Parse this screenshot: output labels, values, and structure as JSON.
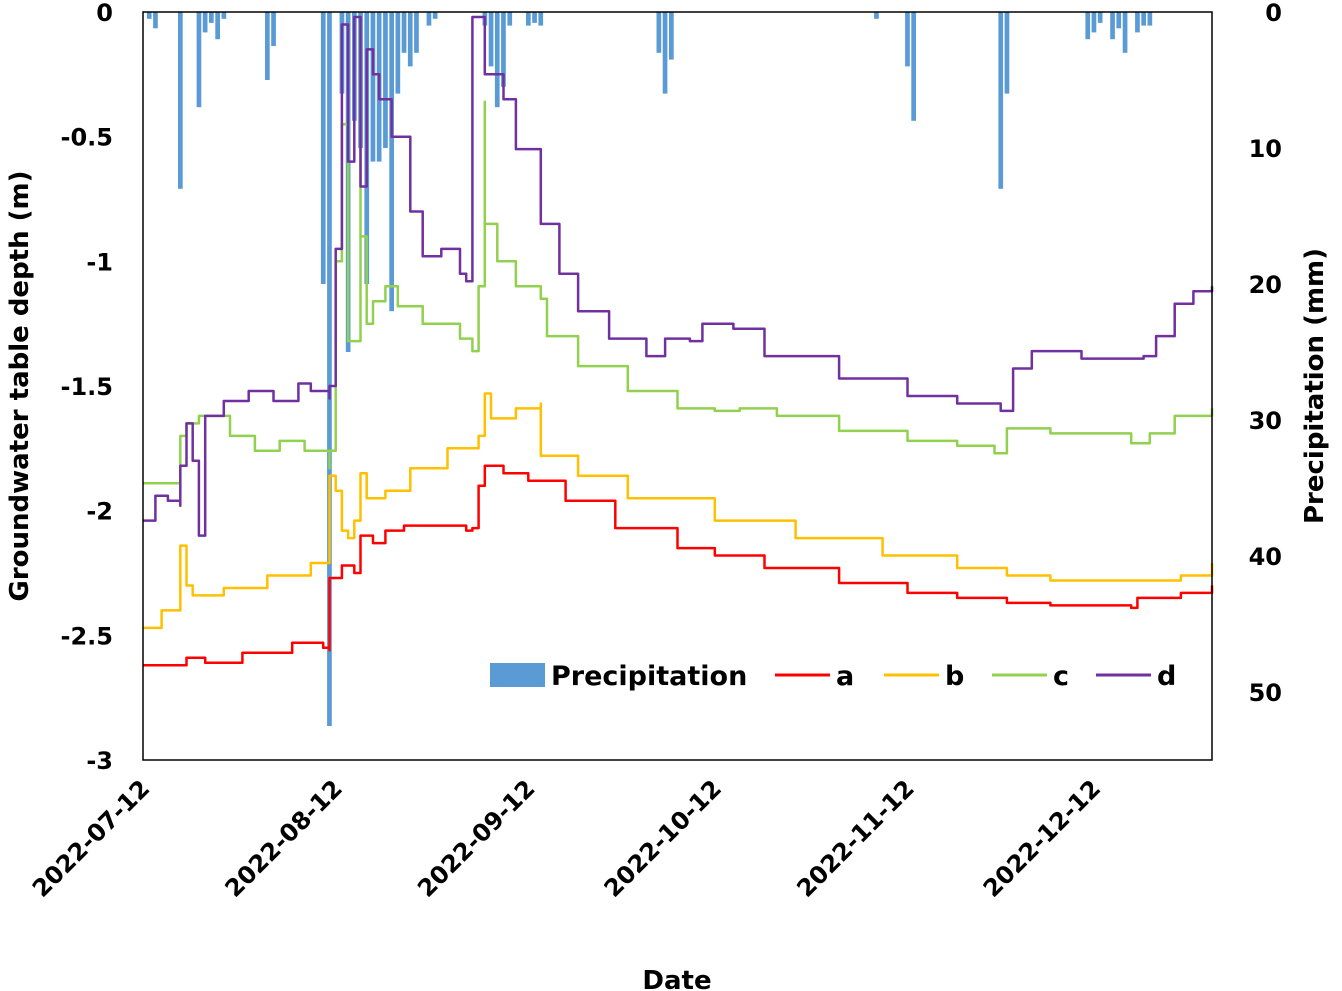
{
  "chart_data": {
    "type": "line",
    "xlabel": "Date",
    "ylabel_left": "Groundwater table depth (m)",
    "ylabel_right": "Precipitation (mm)",
    "x_range": [
      "2022-07-12",
      "2022-12-31"
    ],
    "x_ticks": [
      "2022-07-12",
      "2022-08-12",
      "2022-09-12",
      "2022-10-12",
      "2022-11-12",
      "2022-12-12"
    ],
    "ylim_left": [
      -3,
      0
    ],
    "yticks_left": [
      0,
      -0.5,
      -1,
      -1.5,
      -2,
      -2.5,
      -3
    ],
    "ytick_labels_left": [
      "0",
      "-0.5",
      "-1",
      "-1.5",
      "-2",
      "-2.5",
      "-3"
    ],
    "ylim_right": [
      0,
      55
    ],
    "y_inverted_right": true,
    "yticks_right": [
      0,
      10,
      20,
      30,
      40,
      50
    ],
    "ytick_labels_right": [
      "0",
      "10",
      "20",
      "30",
      "40",
      "50"
    ],
    "grid": false,
    "legend": {
      "position": "bottom-right",
      "entries": [
        {
          "label": "Precipitation",
          "kind": "bar",
          "color": "#5b9bd5"
        },
        {
          "label": "a",
          "kind": "line",
          "color": "#ff0000"
        },
        {
          "label": "b",
          "kind": "line",
          "color": "#ffc000"
        },
        {
          "label": "c",
          "kind": "line",
          "color": "#92d050"
        },
        {
          "label": "d",
          "kind": "line",
          "color": "#7030a0"
        }
      ]
    },
    "precipitation": {
      "name": "Precipitation",
      "color": "#5b9bd5",
      "points": [
        [
          "2022-07-13",
          0.5
        ],
        [
          "2022-07-14",
          1.2
        ],
        [
          "2022-07-18",
          13.0
        ],
        [
          "2022-07-21",
          7.0
        ],
        [
          "2022-07-22",
          1.5
        ],
        [
          "2022-07-23",
          0.8
        ],
        [
          "2022-07-24",
          2.0
        ],
        [
          "2022-07-25",
          0.5
        ],
        [
          "2022-08-01",
          5.0
        ],
        [
          "2022-08-02",
          2.5
        ],
        [
          "2022-08-10",
          20.0
        ],
        [
          "2022-08-11",
          52.5
        ],
        [
          "2022-08-13",
          6.0
        ],
        [
          "2022-08-14",
          25.0
        ],
        [
          "2022-08-15",
          8.0
        ],
        [
          "2022-08-16",
          10.0
        ],
        [
          "2022-08-17",
          20.0
        ],
        [
          "2022-08-18",
          11.0
        ],
        [
          "2022-08-19",
          11.0
        ],
        [
          "2022-08-20",
          10.0
        ],
        [
          "2022-08-21",
          22.0
        ],
        [
          "2022-08-22",
          6.0
        ],
        [
          "2022-08-23",
          3.0
        ],
        [
          "2022-08-24",
          4.0
        ],
        [
          "2022-08-25",
          3.0
        ],
        [
          "2022-08-27",
          1.0
        ],
        [
          "2022-08-28",
          0.5
        ],
        [
          "2022-09-05",
          1.0
        ],
        [
          "2022-09-06",
          4.0
        ],
        [
          "2022-09-07",
          7.0
        ],
        [
          "2022-09-08",
          5.5
        ],
        [
          "2022-09-09",
          1.0
        ],
        [
          "2022-09-12",
          1.0
        ],
        [
          "2022-09-13",
          0.8
        ],
        [
          "2022-09-14",
          1.0
        ],
        [
          "2022-10-03",
          3.0
        ],
        [
          "2022-10-04",
          6.0
        ],
        [
          "2022-10-05",
          3.5
        ],
        [
          "2022-11-07",
          0.5
        ],
        [
          "2022-11-12",
          4.0
        ],
        [
          "2022-11-13",
          8.0
        ],
        [
          "2022-11-27",
          13.0
        ],
        [
          "2022-11-28",
          6.0
        ],
        [
          "2022-12-11",
          2.0
        ],
        [
          "2022-12-12",
          1.5
        ],
        [
          "2022-12-13",
          0.8
        ],
        [
          "2022-12-15",
          2.0
        ],
        [
          "2022-12-16",
          1.2
        ],
        [
          "2022-12-17",
          3.0
        ],
        [
          "2022-12-19",
          1.5
        ],
        [
          "2022-12-20",
          1.0
        ],
        [
          "2022-12-21",
          1.0
        ]
      ]
    },
    "series": [
      {
        "name": "a",
        "color": "#ff0000",
        "points": [
          [
            "2022-07-12",
            -2.62
          ],
          [
            "2022-07-18",
            -2.62
          ],
          [
            "2022-07-19",
            -2.59
          ],
          [
            "2022-07-22",
            -2.61
          ],
          [
            "2022-07-28",
            -2.57
          ],
          [
            "2022-08-05",
            -2.53
          ],
          [
            "2022-08-10",
            -2.55
          ],
          [
            "2022-08-11",
            -2.56
          ],
          [
            "2022-08-11",
            -2.27
          ],
          [
            "2022-08-13",
            -2.22
          ],
          [
            "2022-08-15",
            -2.25
          ],
          [
            "2022-08-16",
            -2.1
          ],
          [
            "2022-08-18",
            -2.13
          ],
          [
            "2022-08-20",
            -2.08
          ],
          [
            "2022-08-23",
            -2.06
          ],
          [
            "2022-08-28",
            -2.06
          ],
          [
            "2022-09-02",
            -2.08
          ],
          [
            "2022-09-03",
            -2.07
          ],
          [
            "2022-09-04",
            -1.9
          ],
          [
            "2022-09-05",
            -1.82
          ],
          [
            "2022-09-08",
            -1.85
          ],
          [
            "2022-09-12",
            -1.88
          ],
          [
            "2022-09-18",
            -1.96
          ],
          [
            "2022-09-26",
            -2.07
          ],
          [
            "2022-10-06",
            -2.15
          ],
          [
            "2022-10-12",
            -2.18
          ],
          [
            "2022-10-20",
            -2.23
          ],
          [
            "2022-11-01",
            -2.29
          ],
          [
            "2022-11-12",
            -2.33
          ],
          [
            "2022-11-20",
            -2.35
          ],
          [
            "2022-11-28",
            -2.37
          ],
          [
            "2022-12-05",
            -2.38
          ],
          [
            "2022-12-18",
            -2.39
          ],
          [
            "2022-12-19",
            -2.35
          ],
          [
            "2022-12-26",
            -2.33
          ],
          [
            "2022-12-31",
            -2.3
          ]
        ]
      },
      {
        "name": "b",
        "color": "#ffc000",
        "points": [
          [
            "2022-07-12",
            -2.47
          ],
          [
            "2022-07-15",
            -2.4
          ],
          [
            "2022-07-18",
            -2.36
          ],
          [
            "2022-07-18",
            -2.14
          ],
          [
            "2022-07-19",
            -2.3
          ],
          [
            "2022-07-20",
            -2.34
          ],
          [
            "2022-07-25",
            -2.31
          ],
          [
            "2022-08-01",
            -2.26
          ],
          [
            "2022-08-08",
            -2.21
          ],
          [
            "2022-08-11",
            -2.2
          ],
          [
            "2022-08-11",
            -1.86
          ],
          [
            "2022-08-12",
            -1.92
          ],
          [
            "2022-08-13",
            -2.08
          ],
          [
            "2022-08-14",
            -2.11
          ],
          [
            "2022-08-15",
            -2.04
          ],
          [
            "2022-08-16",
            -1.85
          ],
          [
            "2022-08-17",
            -1.95
          ],
          [
            "2022-08-20",
            -1.92
          ],
          [
            "2022-08-24",
            -1.83
          ],
          [
            "2022-08-30",
            -1.75
          ],
          [
            "2022-09-04",
            -1.7
          ],
          [
            "2022-09-05",
            -1.53
          ],
          [
            "2022-09-06",
            -1.63
          ],
          [
            "2022-09-10",
            -1.59
          ],
          [
            "2022-09-14",
            -1.57
          ],
          [
            "2022-09-14",
            -1.78
          ],
          [
            "2022-09-20",
            -1.86
          ],
          [
            "2022-09-28",
            -1.95
          ],
          [
            "2022-10-12",
            -2.04
          ],
          [
            "2022-10-25",
            -2.11
          ],
          [
            "2022-11-08",
            -2.18
          ],
          [
            "2022-11-20",
            -2.23
          ],
          [
            "2022-11-28",
            -2.26
          ],
          [
            "2022-12-05",
            -2.28
          ],
          [
            "2022-12-20",
            -2.28
          ],
          [
            "2022-12-26",
            -2.26
          ],
          [
            "2022-12-31",
            -2.21
          ]
        ]
      },
      {
        "name": "c",
        "color": "#92d050",
        "points": [
          [
            "2022-07-12",
            -1.89
          ],
          [
            "2022-07-18",
            -1.91
          ],
          [
            "2022-07-18",
            -1.7
          ],
          [
            "2022-07-19",
            -1.65
          ],
          [
            "2022-07-21",
            -1.62
          ],
          [
            "2022-07-26",
            -1.7
          ],
          [
            "2022-07-30",
            -1.76
          ],
          [
            "2022-08-03",
            -1.72
          ],
          [
            "2022-08-07",
            -1.76
          ],
          [
            "2022-08-11",
            -1.83
          ],
          [
            "2022-08-11",
            -1.76
          ],
          [
            "2022-08-12",
            -1.0
          ],
          [
            "2022-08-13",
            -0.45
          ],
          [
            "2022-08-14",
            -1.32
          ],
          [
            "2022-08-16",
            -0.05
          ],
          [
            "2022-08-16",
            -0.9
          ],
          [
            "2022-08-17",
            -1.25
          ],
          [
            "2022-08-18",
            -1.16
          ],
          [
            "2022-08-20",
            -1.1
          ],
          [
            "2022-08-22",
            -1.18
          ],
          [
            "2022-08-26",
            -1.25
          ],
          [
            "2022-09-01",
            -1.31
          ],
          [
            "2022-09-03",
            -1.36
          ],
          [
            "2022-09-04",
            -1.1
          ],
          [
            "2022-09-05",
            -0.36
          ],
          [
            "2022-09-05",
            -0.85
          ],
          [
            "2022-09-07",
            -1.0
          ],
          [
            "2022-09-10",
            -1.1
          ],
          [
            "2022-09-14",
            -1.15
          ],
          [
            "2022-09-15",
            -1.3
          ],
          [
            "2022-09-20",
            -1.42
          ],
          [
            "2022-09-28",
            -1.52
          ],
          [
            "2022-10-06",
            -1.59
          ],
          [
            "2022-10-12",
            -1.6
          ],
          [
            "2022-10-16",
            -1.59
          ],
          [
            "2022-10-22",
            -1.62
          ],
          [
            "2022-11-01",
            -1.68
          ],
          [
            "2022-11-12",
            -1.72
          ],
          [
            "2022-11-20",
            -1.74
          ],
          [
            "2022-11-26",
            -1.77
          ],
          [
            "2022-11-27",
            -1.77
          ],
          [
            "2022-11-28",
            -1.67
          ],
          [
            "2022-12-05",
            -1.69
          ],
          [
            "2022-12-18",
            -1.73
          ],
          [
            "2022-12-21",
            -1.69
          ],
          [
            "2022-12-25",
            -1.62
          ],
          [
            "2022-12-31",
            -1.59
          ]
        ]
      },
      {
        "name": "d",
        "color": "#7030a0",
        "points": [
          [
            "2022-07-12",
            -2.04
          ],
          [
            "2022-07-14",
            -1.94
          ],
          [
            "2022-07-16",
            -1.96
          ],
          [
            "2022-07-18",
            -1.98
          ],
          [
            "2022-07-18",
            -1.82
          ],
          [
            "2022-07-19",
            -1.65
          ],
          [
            "2022-07-20",
            -1.8
          ],
          [
            "2022-07-21",
            -2.1
          ],
          [
            "2022-07-22",
            -1.62
          ],
          [
            "2022-07-25",
            -1.56
          ],
          [
            "2022-07-29",
            -1.52
          ],
          [
            "2022-08-02",
            -1.56
          ],
          [
            "2022-08-06",
            -1.49
          ],
          [
            "2022-08-08",
            -1.52
          ],
          [
            "2022-08-11",
            -1.55
          ],
          [
            "2022-08-11",
            -1.5
          ],
          [
            "2022-08-12",
            -0.95
          ],
          [
            "2022-08-13",
            -0.05
          ],
          [
            "2022-08-14",
            -0.6
          ],
          [
            "2022-08-15",
            -0.02
          ],
          [
            "2022-08-16",
            -0.7
          ],
          [
            "2022-08-17",
            -0.15
          ],
          [
            "2022-08-18",
            -0.25
          ],
          [
            "2022-08-19",
            -0.35
          ],
          [
            "2022-08-21",
            -0.5
          ],
          [
            "2022-08-24",
            -0.8
          ],
          [
            "2022-08-26",
            -0.98
          ],
          [
            "2022-08-29",
            -0.95
          ],
          [
            "2022-09-01",
            -1.05
          ],
          [
            "2022-09-02",
            -1.08
          ],
          [
            "2022-09-03",
            -0.02
          ],
          [
            "2022-09-05",
            -0.25
          ],
          [
            "2022-09-08",
            -0.35
          ],
          [
            "2022-09-10",
            -0.55
          ],
          [
            "2022-09-14",
            -0.85
          ],
          [
            "2022-09-17",
            -1.05
          ],
          [
            "2022-09-20",
            -1.2
          ],
          [
            "2022-09-25",
            -1.31
          ],
          [
            "2022-10-01",
            -1.38
          ],
          [
            "2022-10-04",
            -1.31
          ],
          [
            "2022-10-08",
            -1.32
          ],
          [
            "2022-10-10",
            -1.25
          ],
          [
            "2022-10-15",
            -1.27
          ],
          [
            "2022-10-20",
            -1.38
          ],
          [
            "2022-11-01",
            -1.47
          ],
          [
            "2022-11-12",
            -1.54
          ],
          [
            "2022-11-20",
            -1.57
          ],
          [
            "2022-11-27",
            -1.6
          ],
          [
            "2022-11-29",
            -1.43
          ],
          [
            "2022-12-02",
            -1.36
          ],
          [
            "2022-12-10",
            -1.39
          ],
          [
            "2022-12-20",
            -1.38
          ],
          [
            "2022-12-22",
            -1.3
          ],
          [
            "2022-12-25",
            -1.17
          ],
          [
            "2022-12-28",
            -1.12
          ],
          [
            "2022-12-31",
            -1.1
          ]
        ]
      }
    ]
  }
}
